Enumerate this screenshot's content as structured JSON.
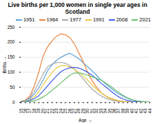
{
  "chart_data": {
    "type": "line",
    "title": "Live births per 1,000 women in single year ages in Scotland",
    "x_label": "Age",
    "y_label": "Births",
    "x": [
      15,
      16,
      17,
      18,
      19,
      20,
      21,
      22,
      23,
      24,
      25,
      26,
      27,
      28,
      29,
      30,
      31,
      32,
      33,
      34,
      35,
      36,
      37,
      38,
      39,
      40,
      41,
      42,
      43,
      44
    ],
    "series": [
      {
        "name": "1951",
        "color": "#5ba3d9",
        "values": [
          2,
          5,
          12,
          28,
          48,
          75,
          105,
          125,
          140,
          150,
          158,
          163,
          155,
          145,
          132,
          118,
          105,
          90,
          75,
          62,
          50,
          38,
          28,
          20,
          13,
          8,
          5,
          3,
          2,
          1
        ]
      },
      {
        "name": "1964",
        "color": "#e8823c",
        "values": [
          3,
          8,
          20,
          55,
          100,
          155,
          185,
          205,
          220,
          228,
          225,
          215,
          195,
          165,
          135,
          100,
          72,
          50,
          33,
          22,
          14,
          9,
          5,
          3,
          2,
          1,
          1,
          1,
          1,
          0
        ]
      },
      {
        "name": "1977",
        "color": "#a8a8a8",
        "values": [
          3,
          7,
          16,
          38,
          65,
          95,
          118,
          128,
          132,
          133,
          130,
          122,
          110,
          95,
          78,
          60,
          44,
          32,
          22,
          14,
          9,
          5,
          3,
          2,
          1,
          1,
          0,
          0,
          0,
          0
        ]
      },
      {
        "name": "1991",
        "color": "#e8c83c",
        "values": [
          2,
          4,
          8,
          18,
          35,
          58,
          80,
          100,
          115,
          122,
          122,
          118,
          110,
          100,
          88,
          74,
          58,
          44,
          32,
          21,
          13,
          8,
          4,
          2,
          1,
          1,
          0,
          0,
          0,
          0
        ]
      },
      {
        "name": "2008",
        "color": "#3c5ae8",
        "values": [
          1,
          2,
          6,
          12,
          22,
          38,
          55,
          72,
          88,
          102,
          110,
          115,
          116,
          114,
          108,
          100,
          90,
          78,
          64,
          52,
          40,
          28,
          18,
          11,
          6,
          3,
          2,
          1,
          1,
          0
        ]
      },
      {
        "name": "2021",
        "color": "#6abf69",
        "values": [
          0,
          1,
          2,
          5,
          10,
          18,
          28,
          40,
          52,
          65,
          78,
          90,
          97,
          98,
          95,
          90,
          85,
          80,
          74,
          65,
          55,
          44,
          33,
          23,
          15,
          9,
          5,
          3,
          2,
          1
        ]
      }
    ],
    "xlim": [
      15,
      44
    ],
    "xticks": [
      15,
      16,
      17,
      18,
      19,
      20,
      21,
      22,
      23,
      24,
      25,
      26,
      27,
      28,
      29,
      30,
      31,
      32,
      33,
      34,
      35,
      36,
      37,
      38,
      39,
      40,
      41,
      42,
      43,
      44
    ],
    "ylim": [
      0,
      250
    ],
    "yticks": [
      0,
      50,
      100,
      150,
      200,
      250
    ],
    "grid": "y",
    "legend": "upper right"
  }
}
